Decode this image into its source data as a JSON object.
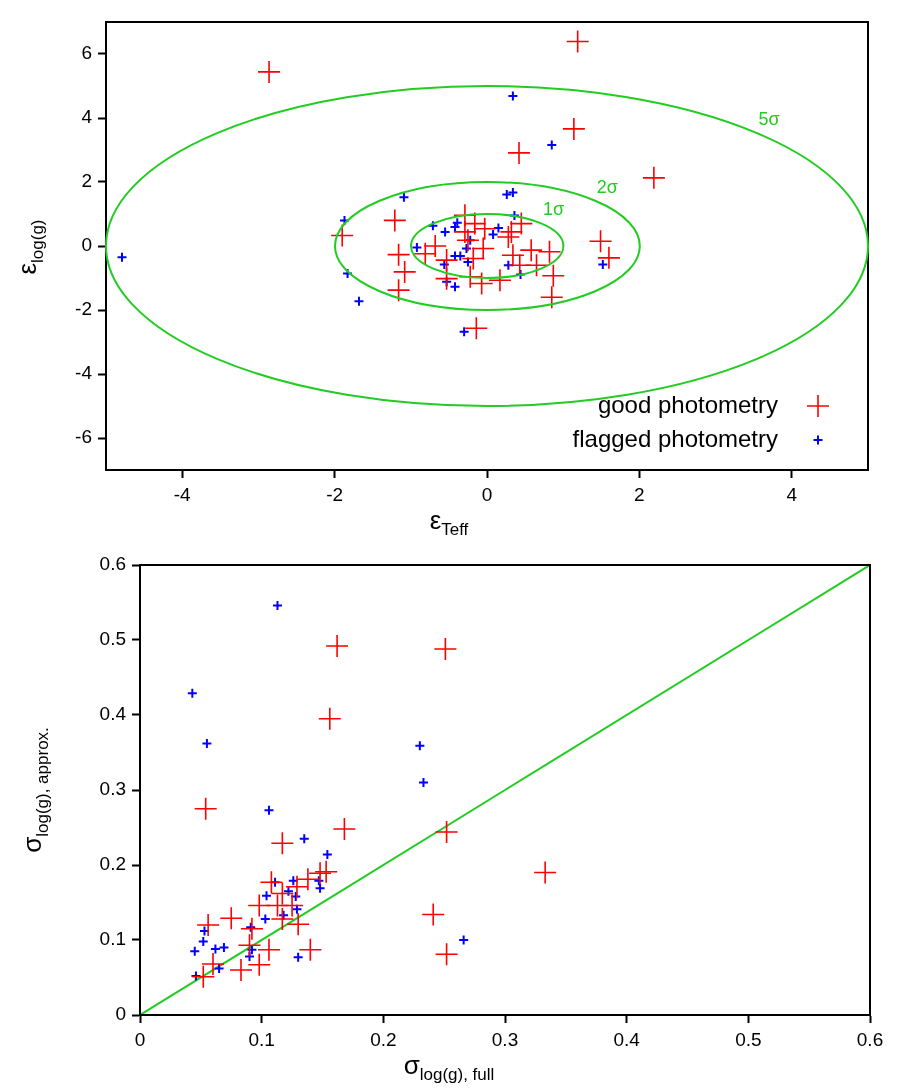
{
  "chart_data": [
    {
      "type": "scatter",
      "xlabel": "ε$_{Teff}$",
      "ylabel": "ε$_{log(g)}$",
      "xlim": [
        -5,
        5
      ],
      "xticks": [
        -4,
        -2,
        0,
        2,
        4
      ],
      "ylim": [
        -7,
        7
      ],
      "yticks": [
        -6,
        -4,
        -2,
        0,
        2,
        4,
        6
      ],
      "grid": false,
      "legend": "bottom right",
      "marker": "cross",
      "series": [
        {
          "name": "good photometry",
          "type": "scatter",
          "color": "#ff0000",
          "x": [
            -2.86,
            1.19,
            1.14,
            0.42,
            2.19,
            -1.9,
            -1.21,
            -1.16,
            -1.08,
            -1.16,
            -0.81,
            -0.68,
            -0.53,
            -0.29,
            -0.16,
            -0.29,
            -0.03,
            -0.05,
            -0.25,
            -0.18,
            -0.53,
            -0.22,
            -0.07,
            0.17,
            0.32,
            0.45,
            0.34,
            0.58,
            0.43,
            0.65,
            0.82,
            0.87,
            0.85,
            1.49,
            1.6,
            -0.14,
            0.28
          ],
          "values": [
            5.44,
            6.39,
            3.66,
            2.91,
            2.13,
            0.33,
            0.8,
            -0.27,
            -0.81,
            -1.38,
            -0.24,
            0.0,
            -0.44,
            0.96,
            0.7,
            0.44,
            0.54,
            -0.08,
            0.18,
            -0.39,
            -1.02,
            -0.96,
            -1.17,
            -1.07,
            0.44,
            0.7,
            -0.29,
            -0.13,
            -0.6,
            -0.6,
            -0.18,
            -0.93,
            -1.6,
            0.15,
            -0.37,
            -2.57,
            0.28
          ]
        },
        {
          "name": "flagged photometry",
          "type": "scatter",
          "color": "#0000ff",
          "x": [
            -4.79,
            0.34,
            0.85,
            0.26,
            0.34,
            -1.09,
            -1.87,
            -1.83,
            -1.68,
            -0.3,
            1.52,
            0.36,
            -0.71,
            -0.55,
            -0.42,
            -0.39,
            -0.92,
            -0.56,
            -0.42,
            -0.35,
            -0.27,
            -0.22,
            -0.25,
            -0.53,
            -0.42,
            0.08,
            0.15,
            0.28,
            0.44
          ],
          "values": [
            -0.35,
            4.69,
            3.16,
            1.61,
            1.67,
            1.52,
            0.8,
            -0.86,
            -1.73,
            -2.68,
            -0.58,
            0.95,
            0.63,
            0.44,
            0.59,
            0.73,
            -0.05,
            -0.58,
            -0.31,
            -0.31,
            -0.08,
            0.18,
            -0.5,
            -1.12,
            -1.27,
            0.36,
            0.56,
            -0.6,
            -0.89
          ]
        }
      ],
      "annotations": [
        "1σ",
        "2σ",
        "5σ"
      ]
    },
    {
      "type": "scatter",
      "xlabel": "σ$_{log(g), full}$",
      "ylabel": "σ$_{log(g), approx.}$",
      "xlim": [
        0,
        0.6
      ],
      "xticks": [
        0,
        0.1,
        0.2,
        0.3,
        0.4,
        0.5,
        0.6
      ],
      "ylim": [
        0,
        0.6
      ],
      "yticks": [
        0,
        0.1,
        0.2,
        0.3,
        0.4,
        0.5,
        0.6
      ],
      "grid": false,
      "legend": false,
      "marker": "cross",
      "series": [
        {
          "type": "scatter",
          "color": "#ff0000",
          "x": [
            0.054,
            0.162,
            0.251,
            0.156,
            0.168,
            0.117,
            0.252,
            0.333,
            0.241,
            0.252,
            0.14,
            0.056,
            0.075,
            0.06,
            0.052,
            0.083,
            0.098,
            0.106,
            0.09,
            0.092,
            0.098,
            0.108,
            0.113,
            0.117,
            0.13,
            0.129,
            0.138,
            0.148,
            0.153,
            0.125,
            0.117
          ],
          "values": [
            0.275,
            0.492,
            0.488,
            0.395,
            0.248,
            0.229,
            0.244,
            0.19,
            0.134,
            0.081,
            0.087,
            0.12,
            0.129,
            0.068,
            0.051,
            0.06,
            0.067,
            0.087,
            0.093,
            0.115,
            0.146,
            0.177,
            0.146,
            0.128,
            0.121,
            0.171,
            0.181,
            0.189,
            0.191,
            0.146,
            0.162
          ]
        },
        {
          "type": "scatter",
          "color": "#0000ff",
          "x": [
            0.113,
            0.043,
            0.055,
            0.23,
            0.233,
            0.106,
            0.135,
            0.154,
            0.266,
            0.13,
            0.046,
            0.045,
            0.052,
            0.053,
            0.062,
            0.069,
            0.065,
            0.091,
            0.092,
            0.09,
            0.103,
            0.104,
            0.111,
            0.122,
            0.126,
            0.128,
            0.129,
            0.118,
            0.147,
            0.148
          ],
          "values": [
            0.546,
            0.429,
            0.362,
            0.359,
            0.31,
            0.273,
            0.235,
            0.214,
            0.1,
            0.077,
            0.052,
            0.085,
            0.098,
            0.112,
            0.088,
            0.09,
            0.062,
            0.117,
            0.087,
            0.078,
            0.128,
            0.159,
            0.177,
            0.165,
            0.179,
            0.158,
            0.141,
            0.133,
            0.179,
            0.169
          ]
        },
        {
          "type": "line",
          "marker": "none",
          "color": "#22cc22",
          "x": [
            0,
            0.6
          ],
          "values": [
            0,
            0.6
          ]
        }
      ]
    }
  ]
}
